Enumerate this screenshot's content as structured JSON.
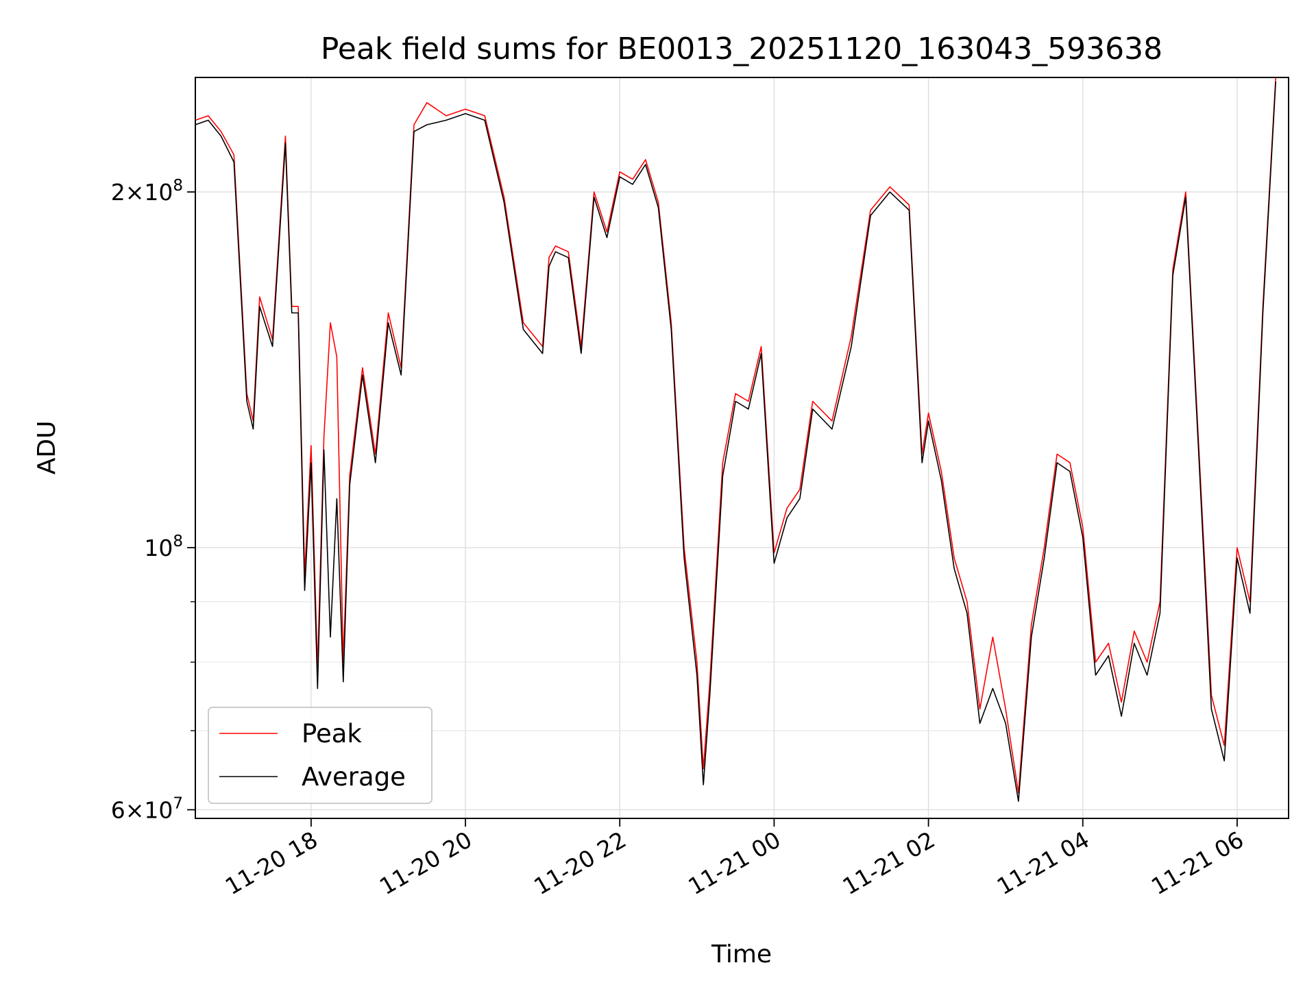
{
  "chart_data": {
    "type": "line",
    "title": "Peak field sums for BE0013_20251120_163043_593638",
    "xlabel": "Time",
    "ylabel": "ADU",
    "y_scale": "log",
    "ylim": [
      59000000,
      250000000
    ],
    "xlim": [
      "2025-11-20 16:30",
      "2025-11-21 06:40"
    ],
    "x_ticks": [
      {
        "time": "2025-11-20 18:00",
        "label": "11-20 18"
      },
      {
        "time": "2025-11-20 20:00",
        "label": "11-20 20"
      },
      {
        "time": "2025-11-20 22:00",
        "label": "11-20 22"
      },
      {
        "time": "2025-11-21 00:00",
        "label": "11-21 00"
      },
      {
        "time": "2025-11-21 02:00",
        "label": "11-21 02"
      },
      {
        "time": "2025-11-21 04:00",
        "label": "11-21 04"
      },
      {
        "time": "2025-11-21 06:00",
        "label": "11-21 06"
      }
    ],
    "y_major_ticks": [
      {
        "value": 60000000,
        "mantissa": "6",
        "base": "10",
        "exp": "7"
      },
      {
        "value": 100000000,
        "mantissa": "",
        "base": "10",
        "exp": "8"
      },
      {
        "value": 200000000,
        "mantissa": "2",
        "base": "10",
        "exp": "8"
      }
    ],
    "y_minor_grid": [
      70000000,
      80000000,
      90000000
    ],
    "grid": true,
    "legend_position": "lower-left",
    "series": [
      {
        "name": "Peak",
        "color": "#ff0000",
        "x": [
          "2025-11-20 16:30",
          "2025-11-20 16:40",
          "2025-11-20 16:50",
          "2025-11-20 17:00",
          "2025-11-20 17:10",
          "2025-11-20 17:15",
          "2025-11-20 17:20",
          "2025-11-20 17:30",
          "2025-11-20 17:40",
          "2025-11-20 17:45",
          "2025-11-20 17:50",
          "2025-11-20 17:55",
          "2025-11-20 18:00",
          "2025-11-20 18:05",
          "2025-11-20 18:10",
          "2025-11-20 18:15",
          "2025-11-20 18:20",
          "2025-11-20 18:25",
          "2025-11-20 18:30",
          "2025-11-20 18:40",
          "2025-11-20 18:50",
          "2025-11-20 19:00",
          "2025-11-20 19:10",
          "2025-11-20 19:20",
          "2025-11-20 19:30",
          "2025-11-20 19:45",
          "2025-11-20 20:00",
          "2025-11-20 20:15",
          "2025-11-20 20:30",
          "2025-11-20 20:45",
          "2025-11-20 21:00",
          "2025-11-20 21:05",
          "2025-11-20 21:10",
          "2025-11-20 21:20",
          "2025-11-20 21:30",
          "2025-11-20 21:40",
          "2025-11-20 21:50",
          "2025-11-20 22:00",
          "2025-11-20 22:10",
          "2025-11-20 22:20",
          "2025-11-20 22:30",
          "2025-11-20 22:40",
          "2025-11-20 22:50",
          "2025-11-20 23:00",
          "2025-11-20 23:05",
          "2025-11-20 23:10",
          "2025-11-20 23:20",
          "2025-11-20 23:30",
          "2025-11-20 23:40",
          "2025-11-20 23:50",
          "2025-11-21 00:00",
          "2025-11-21 00:10",
          "2025-11-21 00:20",
          "2025-11-21 00:30",
          "2025-11-21 00:45",
          "2025-11-21 01:00",
          "2025-11-21 01:15",
          "2025-11-21 01:30",
          "2025-11-21 01:45",
          "2025-11-21 01:55",
          "2025-11-21 02:00",
          "2025-11-21 02:10",
          "2025-11-21 02:20",
          "2025-11-21 02:30",
          "2025-11-21 02:40",
          "2025-11-21 02:50",
          "2025-11-21 03:00",
          "2025-11-21 03:10",
          "2025-11-21 03:20",
          "2025-11-21 03:30",
          "2025-11-21 03:40",
          "2025-11-21 03:50",
          "2025-11-21 04:00",
          "2025-11-21 04:10",
          "2025-11-21 04:20",
          "2025-11-21 04:30",
          "2025-11-21 04:40",
          "2025-11-21 04:50",
          "2025-11-21 05:00",
          "2025-11-21 05:10",
          "2025-11-21 05:20",
          "2025-11-21 05:30",
          "2025-11-21 05:40",
          "2025-11-21 05:50",
          "2025-11-21 06:00",
          "2025-11-21 06:10",
          "2025-11-21 06:20",
          "2025-11-21 06:30"
        ],
        "y": [
          230000000,
          232000000,
          225000000,
          215000000,
          135000000,
          128000000,
          163000000,
          150000000,
          223000000,
          160000000,
          160000000,
          95000000,
          122000000,
          79000000,
          124000000,
          155000000,
          145000000,
          80000000,
          115000000,
          142000000,
          120000000,
          158000000,
          142000000,
          228000000,
          238000000,
          232000000,
          235000000,
          232000000,
          198000000,
          155000000,
          148000000,
          176000000,
          180000000,
          178000000,
          148000000,
          200000000,
          185000000,
          208000000,
          205000000,
          213000000,
          196000000,
          155000000,
          100000000,
          80000000,
          65000000,
          77000000,
          118000000,
          135000000,
          133000000,
          148000000,
          99000000,
          108000000,
          112000000,
          133000000,
          128000000,
          151000000,
          193000000,
          202000000,
          195000000,
          120000000,
          130000000,
          116000000,
          98000000,
          90000000,
          73000000,
          84000000,
          73000000,
          62000000,
          86000000,
          100000000,
          120000000,
          118000000,
          104000000,
          80000000,
          83000000,
          74000000,
          85000000,
          80000000,
          90000000,
          172000000,
          200000000,
          123000000,
          75000000,
          68000000,
          100000000,
          90000000,
          160000000,
          250000000
        ]
      },
      {
        "name": "Average",
        "color": "#000000",
        "x": [
          "2025-11-20 16:30",
          "2025-11-20 16:40",
          "2025-11-20 16:50",
          "2025-11-20 17:00",
          "2025-11-20 17:10",
          "2025-11-20 17:15",
          "2025-11-20 17:20",
          "2025-11-20 17:30",
          "2025-11-20 17:40",
          "2025-11-20 17:45",
          "2025-11-20 17:50",
          "2025-11-20 17:55",
          "2025-11-20 18:00",
          "2025-11-20 18:05",
          "2025-11-20 18:10",
          "2025-11-20 18:15",
          "2025-11-20 18:20",
          "2025-11-20 18:25",
          "2025-11-20 18:30",
          "2025-11-20 18:40",
          "2025-11-20 18:50",
          "2025-11-20 19:00",
          "2025-11-20 19:10",
          "2025-11-20 19:20",
          "2025-11-20 19:30",
          "2025-11-20 19:45",
          "2025-11-20 20:00",
          "2025-11-20 20:15",
          "2025-11-20 20:30",
          "2025-11-20 20:45",
          "2025-11-20 21:00",
          "2025-11-20 21:05",
          "2025-11-20 21:10",
          "2025-11-20 21:20",
          "2025-11-20 21:30",
          "2025-11-20 21:40",
          "2025-11-20 21:50",
          "2025-11-20 22:00",
          "2025-11-20 22:10",
          "2025-11-20 22:20",
          "2025-11-20 22:30",
          "2025-11-20 22:40",
          "2025-11-20 22:50",
          "2025-11-20 23:00",
          "2025-11-20 23:05",
          "2025-11-20 23:10",
          "2025-11-20 23:20",
          "2025-11-20 23:30",
          "2025-11-20 23:40",
          "2025-11-20 23:50",
          "2025-11-21 00:00",
          "2025-11-21 00:10",
          "2025-11-21 00:20",
          "2025-11-21 00:30",
          "2025-11-21 00:45",
          "2025-11-21 01:00",
          "2025-11-21 01:15",
          "2025-11-21 01:30",
          "2025-11-21 01:45",
          "2025-11-21 01:55",
          "2025-11-21 02:00",
          "2025-11-21 02:10",
          "2025-11-21 02:20",
          "2025-11-21 02:30",
          "2025-11-21 02:40",
          "2025-11-21 02:50",
          "2025-11-21 03:00",
          "2025-11-21 03:10",
          "2025-11-21 03:20",
          "2025-11-21 03:30",
          "2025-11-21 03:40",
          "2025-11-21 03:50",
          "2025-11-21 04:00",
          "2025-11-21 04:10",
          "2025-11-21 04:20",
          "2025-11-21 04:30",
          "2025-11-21 04:40",
          "2025-11-21 04:50",
          "2025-11-21 05:00",
          "2025-11-21 05:10",
          "2025-11-21 05:20",
          "2025-11-21 05:30",
          "2025-11-21 05:40",
          "2025-11-21 05:50",
          "2025-11-21 06:00",
          "2025-11-21 06:10",
          "2025-11-21 06:20",
          "2025-11-21 06:30"
        ],
        "y": [
          228000000,
          230000000,
          223000000,
          212000000,
          133000000,
          126000000,
          160000000,
          148000000,
          220000000,
          158000000,
          158000000,
          92000000,
          118000000,
          76000000,
          121000000,
          84000000,
          110000000,
          77000000,
          113000000,
          140000000,
          118000000,
          155000000,
          140000000,
          225000000,
          228000000,
          230000000,
          233000000,
          230000000,
          196000000,
          153000000,
          146000000,
          173000000,
          178000000,
          176000000,
          146000000,
          198000000,
          183000000,
          206000000,
          203000000,
          211000000,
          194000000,
          153000000,
          98000000,
          78000000,
          63000000,
          75000000,
          115000000,
          133000000,
          131000000,
          146000000,
          97000000,
          106000000,
          110000000,
          131000000,
          126000000,
          148000000,
          191000000,
          200000000,
          193000000,
          118000000,
          128000000,
          114000000,
          96000000,
          88000000,
          71000000,
          76000000,
          71000000,
          61000000,
          84000000,
          98000000,
          118000000,
          116000000,
          102000000,
          78000000,
          81000000,
          72000000,
          83000000,
          78000000,
          88000000,
          170000000,
          198000000,
          121000000,
          73000000,
          66000000,
          98000000,
          88000000,
          158000000,
          248000000
        ]
      }
    ]
  }
}
